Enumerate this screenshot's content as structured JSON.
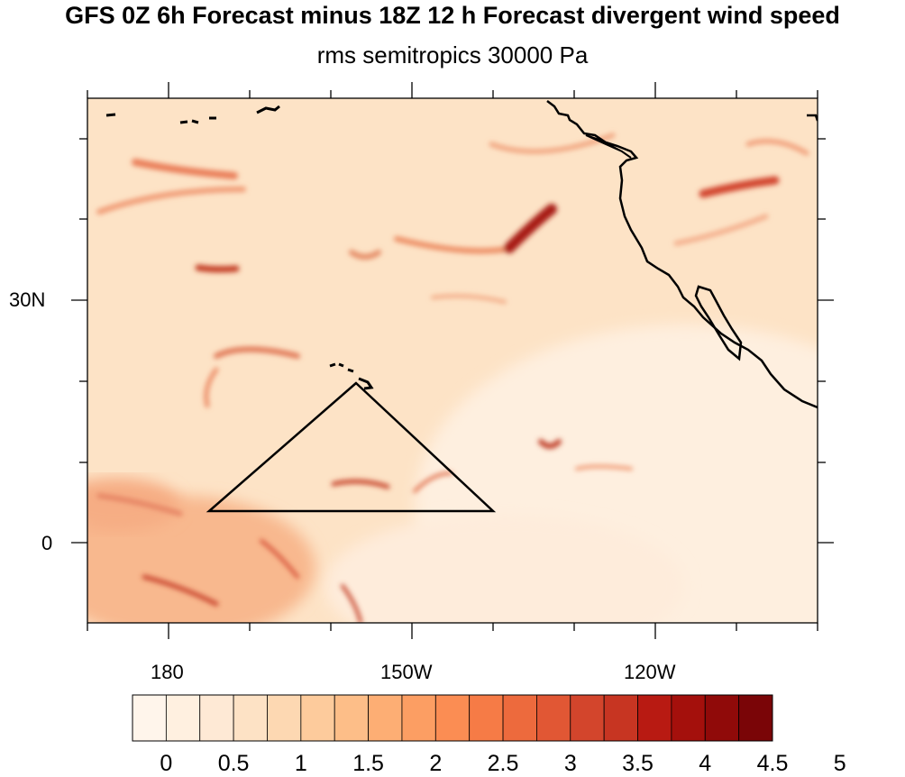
{
  "title": "GFS 0Z 6h Forecast minus 18Z 12 h Forecast divergent wind speed",
  "subtitle": "rms semitropics 30000 Pa",
  "axes": {
    "lat_labels": [
      "30N",
      "0"
    ],
    "lon_labels": [
      "180",
      "150W",
      "120W"
    ]
  },
  "colorbar": {
    "labels": [
      "0",
      "0.5",
      "1",
      "1.5",
      "2",
      "2.5",
      "3",
      "3.5",
      "4",
      "4.5",
      "5"
    ],
    "colors": [
      "#fff5eb",
      "#fff0e0",
      "#fee9d5",
      "#fde2c5",
      "#fdd8b2",
      "#fdcb9c",
      "#fdbe88",
      "#fdae74",
      "#fc9e63",
      "#fb8d53",
      "#f67b46",
      "#ed6a3d",
      "#e15734",
      "#d3452c",
      "#c73522",
      "#b81a12",
      "#a4100c",
      "#900a09",
      "#7a0507"
    ]
  },
  "map": {
    "background": "#fde3c6",
    "outline_color": "#000000"
  }
}
